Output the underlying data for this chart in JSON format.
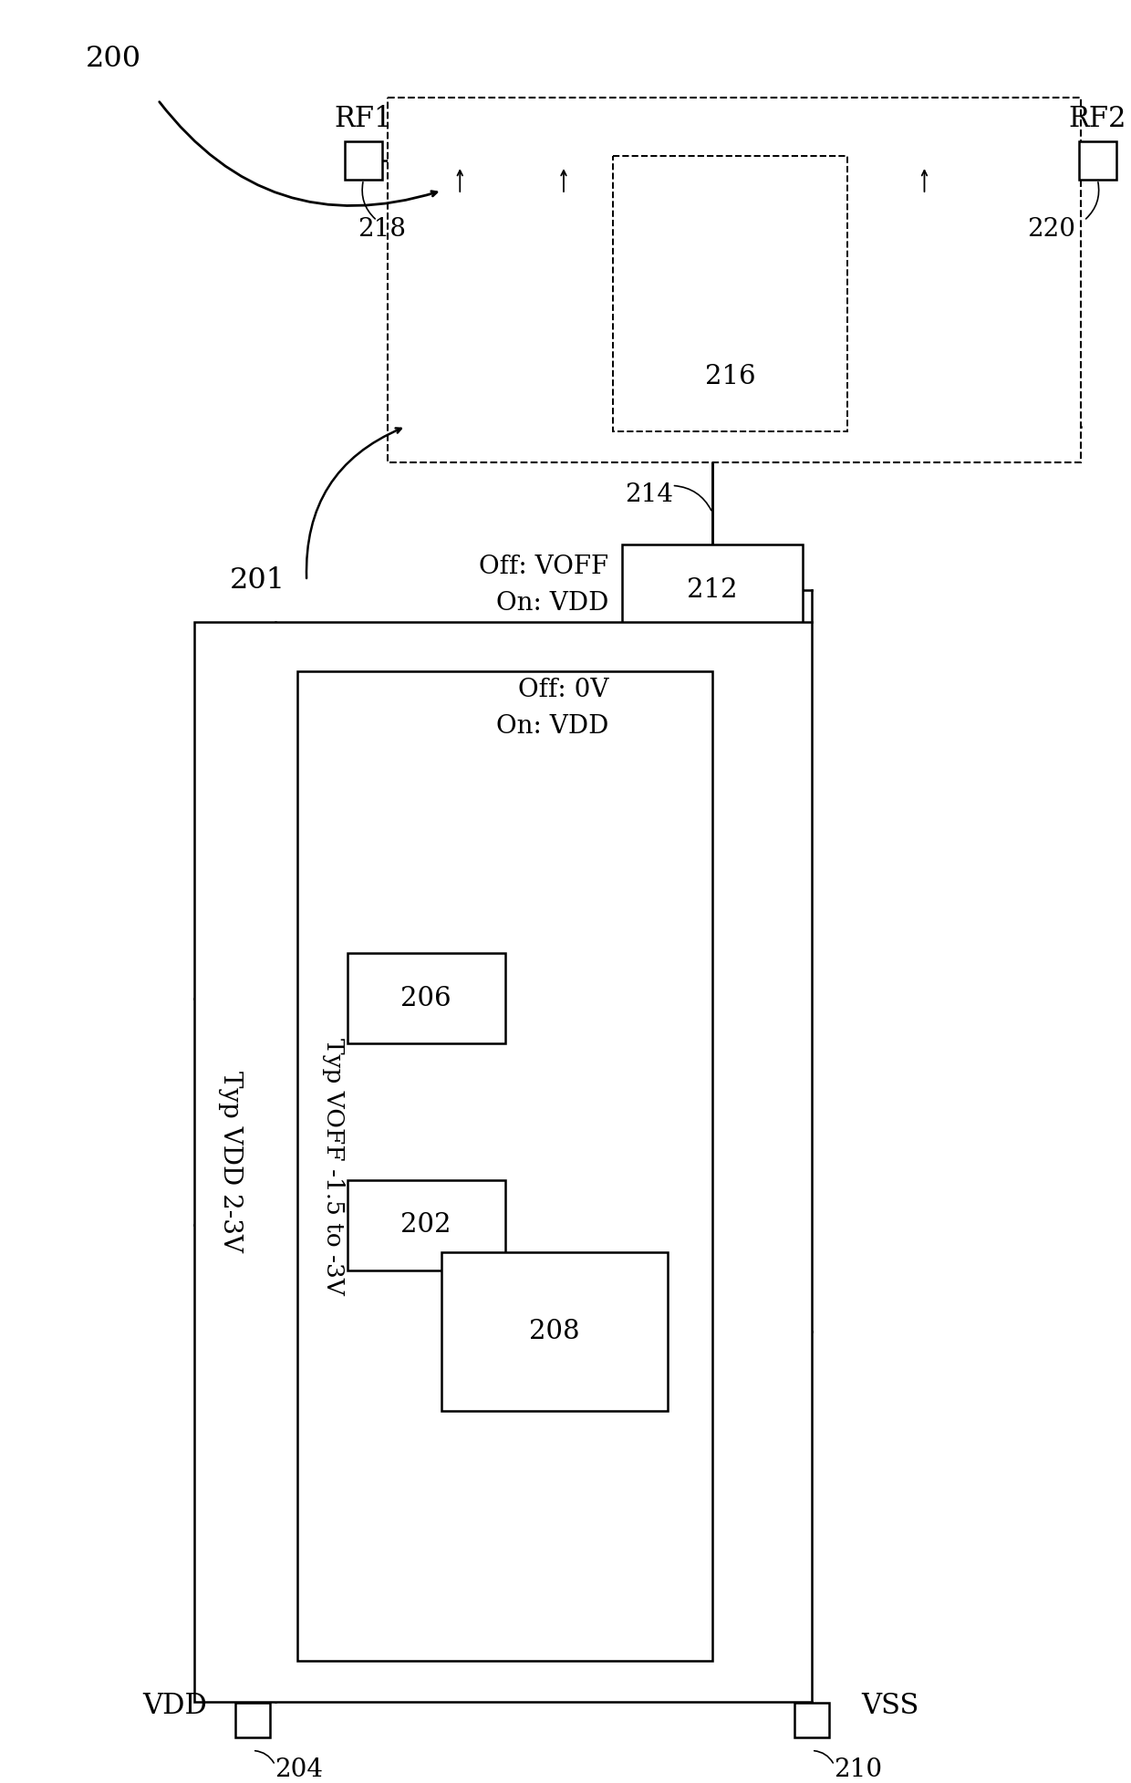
{
  "background_color": "#ffffff",
  "line_color": "#000000",
  "labels": {
    "200": "200",
    "201": "201",
    "202": "202",
    "204": "204",
    "206": "206",
    "208": "208",
    "210": "210",
    "212": "212",
    "214": "214",
    "216": "216",
    "218": "218",
    "220": "220",
    "RF1": "RF1",
    "RF2": "RF2",
    "VDD": "VDD",
    "VSS": "VSS",
    "typ_vdd": "Typ VDD 2-3V",
    "typ_voff": "Typ VOFF -1.5 to -3V",
    "off_voff": "Off: VOFF",
    "on_vdd1": "On: VDD",
    "off_0v": "Off: 0V",
    "on_vdd2": "On: VDD"
  },
  "fig_width": 12.4,
  "fig_height": 19.55,
  "dpi": 100
}
